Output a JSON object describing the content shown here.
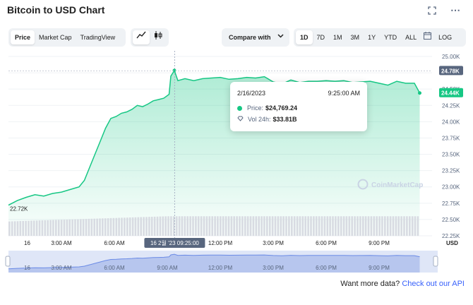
{
  "header": {
    "title": "Bitcoin to USD Chart",
    "expand_icon": "expand-icon",
    "more_icon": "ellipsis-icon"
  },
  "view_tabs": [
    {
      "label": "Price",
      "active": true
    },
    {
      "label": "Market Cap",
      "active": false
    },
    {
      "label": "TradingView",
      "active": false
    }
  ],
  "chart_type_toggle": {
    "line_icon": "line-chart-icon",
    "candle_icon": "candlestick-icon",
    "active": "line"
  },
  "compare": {
    "label": "Compare with"
  },
  "ranges": [
    {
      "label": "1D",
      "active": true
    },
    {
      "label": "7D",
      "active": false
    },
    {
      "label": "1M",
      "active": false
    },
    {
      "label": "3M",
      "active": false
    },
    {
      "label": "1Y",
      "active": false
    },
    {
      "label": "YTD",
      "active": false
    },
    {
      "label": "ALL",
      "active": false
    }
  ],
  "calendar_icon": "calendar-icon",
  "log_label": "LOG",
  "chart_data": {
    "type": "area",
    "title": "",
    "xlabel": "",
    "ylabel": "",
    "currency_label": "USD",
    "ylim": [
      22250,
      25000
    ],
    "y_ticks": [
      "25.00K",
      "24.75K",
      "24.50K",
      "24.25K",
      "24.00K",
      "23.75K",
      "23.50K",
      "23.25K",
      "23.00K",
      "22.75K",
      "22.50K",
      "22.25K"
    ],
    "y_tick_values": [
      25000,
      24750,
      24500,
      24250,
      24000,
      23750,
      23500,
      23250,
      23000,
      22750,
      22500,
      22250
    ],
    "x_ticks": [
      {
        "label": "16",
        "hour": 0
      },
      {
        "label": "3:00 AM",
        "hour": 3
      },
      {
        "label": "6:00 AM",
        "hour": 6
      },
      {
        "label": "12:00 PM",
        "hour": 12
      },
      {
        "label": "3:00 PM",
        "hour": 15
      },
      {
        "label": "6:00 PM",
        "hour": 18
      },
      {
        "label": "9:00 PM",
        "hour": 21
      }
    ],
    "hover_x_label": "16 2월 '23 09:25:00",
    "hover_hour": 9.4167,
    "high_label": "24.78K",
    "current_label": "24.44K",
    "low_label": "22.72K",
    "series": [
      {
        "color": "#16c784",
        "x_hours": [
          0,
          0.5,
          1,
          1.5,
          2,
          2.5,
          3,
          3.5,
          4,
          4.3,
          4.6,
          4.9,
          5.2,
          5.5,
          5.8,
          6.1,
          6.4,
          6.7,
          7,
          7.3,
          7.6,
          7.9,
          8.2,
          8.5,
          8.8,
          9.1,
          9.2,
          9.4,
          9.6,
          10,
          10.5,
          11,
          11.5,
          12,
          12.5,
          13,
          13.5,
          14,
          14.5,
          15,
          15.5,
          16,
          16.5,
          17,
          17.5,
          18,
          18.5,
          19,
          19.5,
          20,
          20.5,
          21,
          21.5,
          22,
          22.5,
          23,
          23.3
        ],
        "values": [
          22720,
          22790,
          22840,
          22880,
          22860,
          22900,
          22920,
          22960,
          23000,
          23100,
          23300,
          23500,
          23700,
          23900,
          24050,
          24080,
          24130,
          24150,
          24190,
          24250,
          24230,
          24270,
          24320,
          24340,
          24360,
          24420,
          24700,
          24785,
          24630,
          24660,
          24630,
          24660,
          24670,
          24680,
          24650,
          24660,
          24680,
          24670,
          24690,
          24610,
          24580,
          24640,
          24600,
          24620,
          24620,
          24630,
          24620,
          24630,
          24600,
          24610,
          24620,
          24590,
          24560,
          24620,
          24590,
          24590,
          24440
        ]
      }
    ],
    "volume_series": {
      "color": "#d8dbe2",
      "note": "24h volume, relative",
      "start": 0.55,
      "end": 0.75
    },
    "navigator": {
      "x_ticks": [
        "16",
        "3:00 AM",
        "6:00 AM",
        "9:00 AM",
        "12:00 PM",
        "3:00 PM",
        "6:00 PM",
        "9:00 PM"
      ]
    },
    "watermark": "CoinMarketCap"
  },
  "tooltip": {
    "date": "2/16/2023",
    "time": "9:25:00 AM",
    "price_label": "Price:",
    "price_value": "$24,769.24",
    "vol_label": "Vol 24h:",
    "vol_value": "$33.81B"
  },
  "footer": {
    "text": "Want more data?",
    "link": "Check out our API"
  }
}
